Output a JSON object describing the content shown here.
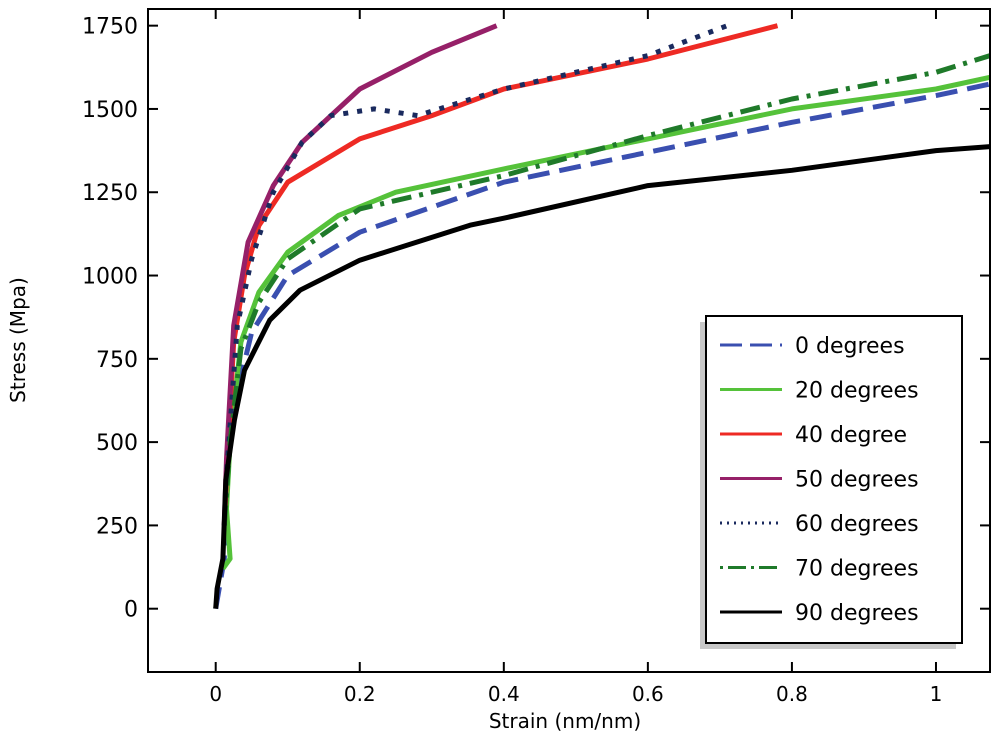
{
  "chart_data": {
    "type": "line",
    "title": "",
    "xlabel": "Strain (nm/nm)",
    "ylabel": "Stress (Mpa)",
    "xlim": [
      -0.094,
      1.075
    ],
    "ylim": [
      -190,
      1800
    ],
    "xticks": [
      0,
      0.2,
      0.4,
      0.6,
      0.8,
      1
    ],
    "xtick_labels": [
      "0",
      "0.2",
      "0.4",
      "0.6",
      "0.8",
      "1"
    ],
    "yticks": [
      0,
      250,
      500,
      750,
      1000,
      1250,
      1500,
      1750
    ],
    "ytick_labels": [
      "0",
      "250",
      "500",
      "750",
      "1000",
      "1250",
      "1500",
      "1750"
    ],
    "grid": false,
    "legend_position": "bottom-right",
    "series": [
      {
        "name": "0 degrees",
        "color": "#3a4fb0",
        "style": "dashed",
        "x": [
          0,
          0.012,
          0.015,
          0.03,
          0.05,
          0.1,
          0.2,
          0.4,
          0.6,
          0.8,
          1.0,
          1.075
        ],
        "y": [
          0,
          150,
          400,
          650,
          830,
          1000,
          1130,
          1280,
          1370,
          1460,
          1540,
          1575
        ]
      },
      {
        "name": "20 degrees",
        "color": "#55c23a",
        "style": "solid",
        "x": [
          0.01,
          0.02,
          0.015,
          0.02,
          0.035,
          0.06,
          0.1,
          0.17,
          0.25,
          0.4,
          0.6,
          0.8,
          1.0,
          1.075
        ],
        "y": [
          120,
          150,
          300,
          500,
          800,
          950,
          1070,
          1180,
          1250,
          1320,
          1410,
          1500,
          1560,
          1595
        ]
      },
      {
        "name": "40 degree",
        "color": "#ee2a24",
        "style": "solid",
        "x": [
          0.012,
          0.015,
          0.025,
          0.04,
          0.06,
          0.1,
          0.2,
          0.3,
          0.4,
          0.6,
          0.78
        ],
        "y": [
          250,
          400,
          800,
          1000,
          1150,
          1280,
          1410,
          1480,
          1560,
          1650,
          1750
        ]
      },
      {
        "name": "50 degrees",
        "color": "#962068",
        "style": "solid",
        "x": [
          0.012,
          0.015,
          0.025,
          0.045,
          0.08,
          0.12,
          0.2,
          0.3,
          0.39
        ],
        "y": [
          250,
          450,
          850,
          1100,
          1270,
          1400,
          1560,
          1670,
          1750
        ]
      },
      {
        "name": "60 degrees",
        "color": "#1a2a5e",
        "style": "dotted",
        "x": [
          0.012,
          0.015,
          0.03,
          0.05,
          0.08,
          0.12,
          0.16,
          0.22,
          0.28,
          0.4,
          0.6,
          0.71
        ],
        "y": [
          250,
          400,
          850,
          1050,
          1250,
          1400,
          1480,
          1500,
          1480,
          1560,
          1660,
          1750
        ]
      },
      {
        "name": "70 degrees",
        "color": "#1f7a2a",
        "style": "dashdot",
        "x": [
          0.012,
          0.02,
          0.035,
          0.06,
          0.1,
          0.2,
          0.4,
          0.6,
          0.8,
          1.0,
          1.075
        ],
        "y": [
          250,
          500,
          780,
          920,
          1050,
          1200,
          1300,
          1420,
          1530,
          1610,
          1660
        ]
      },
      {
        "name": "90 degrees",
        "color": "#000000",
        "style": "solid",
        "x": [
          0,
          0.002,
          0.01,
          0.014,
          0.026,
          0.04,
          0.075,
          0.117,
          0.2,
          0.353,
          0.4,
          0.6,
          0.8,
          1.0,
          1.075
        ],
        "y": [
          0,
          60,
          150,
          387,
          566,
          716,
          866,
          956,
          1046,
          1151,
          1172,
          1270,
          1316,
          1375,
          1387
        ]
      }
    ]
  }
}
